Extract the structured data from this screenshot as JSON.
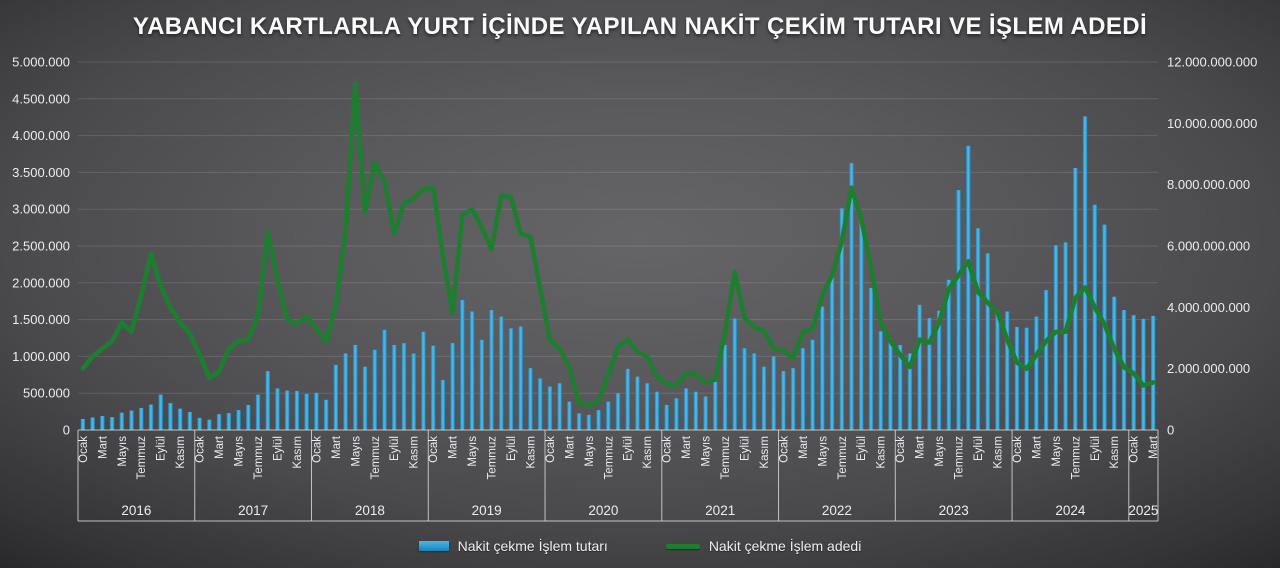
{
  "title": "YABANCI KARTLARLA YURT İÇİNDE YAPILAN NAKİT ÇEKİM TUTARI VE İŞLEM ADEDİ",
  "legend": {
    "items": [
      {
        "label": "Nakit çekme İşlem tutarı",
        "type": "bar",
        "color": "#35A3DC"
      },
      {
        "label": "Nakit çekme İşlem adedi",
        "type": "line",
        "color": "#1E7E30"
      }
    ]
  },
  "chart_data": {
    "type": "bar+line combo, monthly time series Jan 2016 - Mar 2025",
    "title": "YABANCI KARTLARLA YURT İÇİNDE YAPILAN NAKİT ÇEKİM TUTARI VE İŞLEM ADEDİ",
    "grid": "horizontal gridlines on, dark gray vignette background",
    "left_axis": {
      "min": 0,
      "max": 5000000,
      "step": 500000,
      "tick_labels_top_to_bottom": [
        "5.000.000",
        "4.500.000",
        "4.000.000",
        "3.500.000",
        "3.000.000",
        "2.500.000",
        "2.000.000",
        "1.500.000",
        "1.000.000",
        "500.000",
        "0"
      ],
      "series": "Nakit çekme İşlem tutarı (bars)"
    },
    "right_axis": {
      "min": 0,
      "max": 12000000000,
      "step": 2000000000,
      "tick_labels_top_to_bottom": [
        "12.000.000.000",
        "10.000.000.000",
        "8.000.000.000",
        "6.000.000.000",
        "4.000.000.000",
        "2.000.000.000",
        "0"
      ],
      "series": "Nakit çekme İşlem adedi (line)"
    },
    "bar_color": "#35A3DC",
    "line_color": "#1E7E30",
    "years": [
      {
        "year": "2016",
        "month_tick_labels": [
          "Ocak",
          "Mart",
          "Mayıs",
          "Temmuz",
          "Eylül",
          "Kasım"
        ],
        "bar_values": [
          150000,
          170000,
          190000,
          175000,
          235000,
          265000,
          300000,
          345000,
          480000,
          365000,
          290000,
          245000
        ],
        "line_values_bn": [
          2.0,
          2.4,
          2.65,
          2.9,
          3.5,
          3.2,
          4.4,
          5.75,
          4.7,
          4.0,
          3.5,
          3.15
        ]
      },
      {
        "year": "2017",
        "month_tick_labels": [
          "Ocak",
          "Mart",
          "Mayıs",
          "Temmuz",
          "Eylül",
          "Kasım"
        ],
        "bar_values": [
          165000,
          140000,
          215000,
          230000,
          270000,
          340000,
          480000,
          800000,
          565000,
          535000,
          530000,
          490000
        ],
        "line_values_bn": [
          2.45,
          1.7,
          1.9,
          2.65,
          2.9,
          2.95,
          3.75,
          6.45,
          4.9,
          3.6,
          3.45,
          3.7
        ]
      },
      {
        "year": "2018",
        "month_tick_labels": [
          "Ocak",
          "Mart",
          "Mayıs",
          "Temmuz",
          "Eylül",
          "Kasım"
        ],
        "bar_values": [
          505000,
          410000,
          885000,
          1040000,
          1155000,
          860000,
          1090000,
          1360000,
          1155000,
          1180000,
          1040000,
          1335000
        ],
        "line_values_bn": [
          3.3,
          2.9,
          4.1,
          6.5,
          11.3,
          7.1,
          8.7,
          8.1,
          6.4,
          7.4,
          7.55,
          7.85
        ]
      },
      {
        "year": "2019",
        "month_tick_labels": [
          "Ocak",
          "Mart",
          "Mayıs",
          "Temmuz",
          "Eylül",
          "Kasım"
        ],
        "bar_values": [
          1145000,
          680000,
          1180000,
          1765000,
          1610000,
          1225000,
          1630000,
          1540000,
          1380000,
          1405000,
          840000,
          700000
        ],
        "line_values_bn": [
          7.9,
          5.7,
          3.8,
          7.0,
          7.2,
          6.6,
          5.9,
          7.65,
          7.6,
          6.4,
          6.3,
          4.6
        ]
      },
      {
        "year": "2020",
        "month_tick_labels": [
          "Ocak",
          "Mart",
          "Mayıs",
          "Temmuz",
          "Eylül",
          "Kasım"
        ],
        "bar_values": [
          590000,
          635000,
          385000,
          225000,
          205000,
          270000,
          385000,
          500000,
          830000,
          725000,
          635000,
          520000
        ],
        "line_values_bn": [
          2.95,
          2.65,
          2.05,
          0.9,
          0.8,
          0.95,
          1.8,
          2.7,
          2.95,
          2.55,
          2.4,
          1.75
        ]
      },
      {
        "year": "2021",
        "month_tick_labels": [
          "Ocak",
          "Mart",
          "Mayıs",
          "Temmuz",
          "Eylül",
          "Kasım"
        ],
        "bar_values": [
          340000,
          430000,
          565000,
          520000,
          455000,
          655000,
          1155000,
          1515000,
          1110000,
          1040000,
          860000,
          1000000
        ],
        "line_values_bn": [
          1.5,
          1.45,
          1.85,
          1.8,
          1.55,
          1.65,
          3.2,
          5.15,
          3.65,
          3.35,
          3.25,
          2.65
        ]
      },
      {
        "year": "2022",
        "month_tick_labels": [
          "Ocak",
          "Mart",
          "Mayıs",
          "Temmuz",
          "Eylül",
          "Kasım"
        ],
        "bar_values": [
          800000,
          840000,
          1110000,
          1225000,
          1675000,
          2130000,
          3010000,
          3625000,
          2880000,
          1930000,
          1340000,
          1220000
        ],
        "line_values_bn": [
          2.6,
          2.35,
          3.2,
          3.3,
          4.4,
          5.05,
          6.15,
          7.9,
          6.9,
          5.3,
          3.5,
          2.9
        ]
      },
      {
        "year": "2023",
        "month_tick_labels": [
          "Ocak",
          "Mart",
          "Mayıs",
          "Temmuz",
          "Eylül",
          "Kasım"
        ],
        "bar_values": [
          1155000,
          1040000,
          1700000,
          1520000,
          1620000,
          2040000,
          3260000,
          3860000,
          2740000,
          2400000,
          1630000,
          1610000
        ],
        "line_values_bn": [
          2.45,
          2.05,
          2.95,
          2.85,
          3.5,
          4.6,
          5.05,
          5.5,
          4.5,
          4.15,
          3.85,
          2.95
        ]
      },
      {
        "year": "2024",
        "month_tick_labels": [
          "Ocak",
          "Mart",
          "Mayıs",
          "Temmuz",
          "Eylül",
          "Kasım"
        ],
        "bar_values": [
          1400000,
          1390000,
          1540000,
          1900000,
          2510000,
          2550000,
          3560000,
          4260000,
          3060000,
          2790000,
          1810000,
          1630000
        ],
        "line_values_bn": [
          2.2,
          2.0,
          2.45,
          2.9,
          3.2,
          3.2,
          4.3,
          4.65,
          4.0,
          3.45,
          2.65,
          2.05
        ]
      },
      {
        "year": "2025",
        "month_tick_labels": [
          "Ocak",
          "Mart"
        ],
        "bar_values": [
          1560000,
          1510000,
          1550000
        ],
        "line_values_bn": [
          1.85,
          1.45,
          1.55
        ]
      }
    ]
  }
}
